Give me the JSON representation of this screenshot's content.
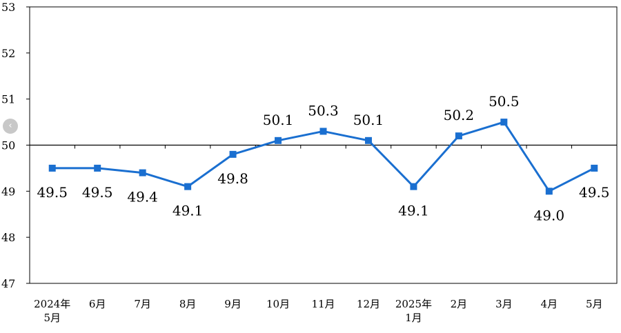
{
  "chart_data": {
    "type": "line",
    "categories": [
      [
        "2024年",
        "5月"
      ],
      [
        "6月"
      ],
      [
        "7月"
      ],
      [
        "8月"
      ],
      [
        "9月"
      ],
      [
        "10月"
      ],
      [
        "11月"
      ],
      [
        "12月"
      ],
      [
        "2025年",
        "1月"
      ],
      [
        "2月"
      ],
      [
        "3月"
      ],
      [
        "4月"
      ],
      [
        "5月"
      ]
    ],
    "series": [
      {
        "values": [
          49.5,
          49.5,
          49.4,
          49.1,
          49.8,
          50.1,
          50.3,
          50.1,
          49.1,
          50.2,
          50.5,
          49.0,
          49.5
        ],
        "data_labels": [
          "49.5",
          "49.5",
          "49.4",
          "49.1",
          "49.8",
          "50.1",
          "50.3",
          "50.1",
          "49.1",
          "50.2",
          "50.5",
          "49.0",
          "49.5"
        ],
        "color": "#1a6fd0"
      }
    ],
    "y_ticks": [
      "47",
      "48",
      "49",
      "50",
      "51",
      "52",
      "53"
    ],
    "ylim": [
      47,
      53
    ],
    "reference_line": 50,
    "grid": false,
    "title": "",
    "xlabel": "",
    "ylabel": ""
  },
  "nav": {
    "prev_glyph": "‹",
    "prev_icon": "chevron-left-icon"
  }
}
